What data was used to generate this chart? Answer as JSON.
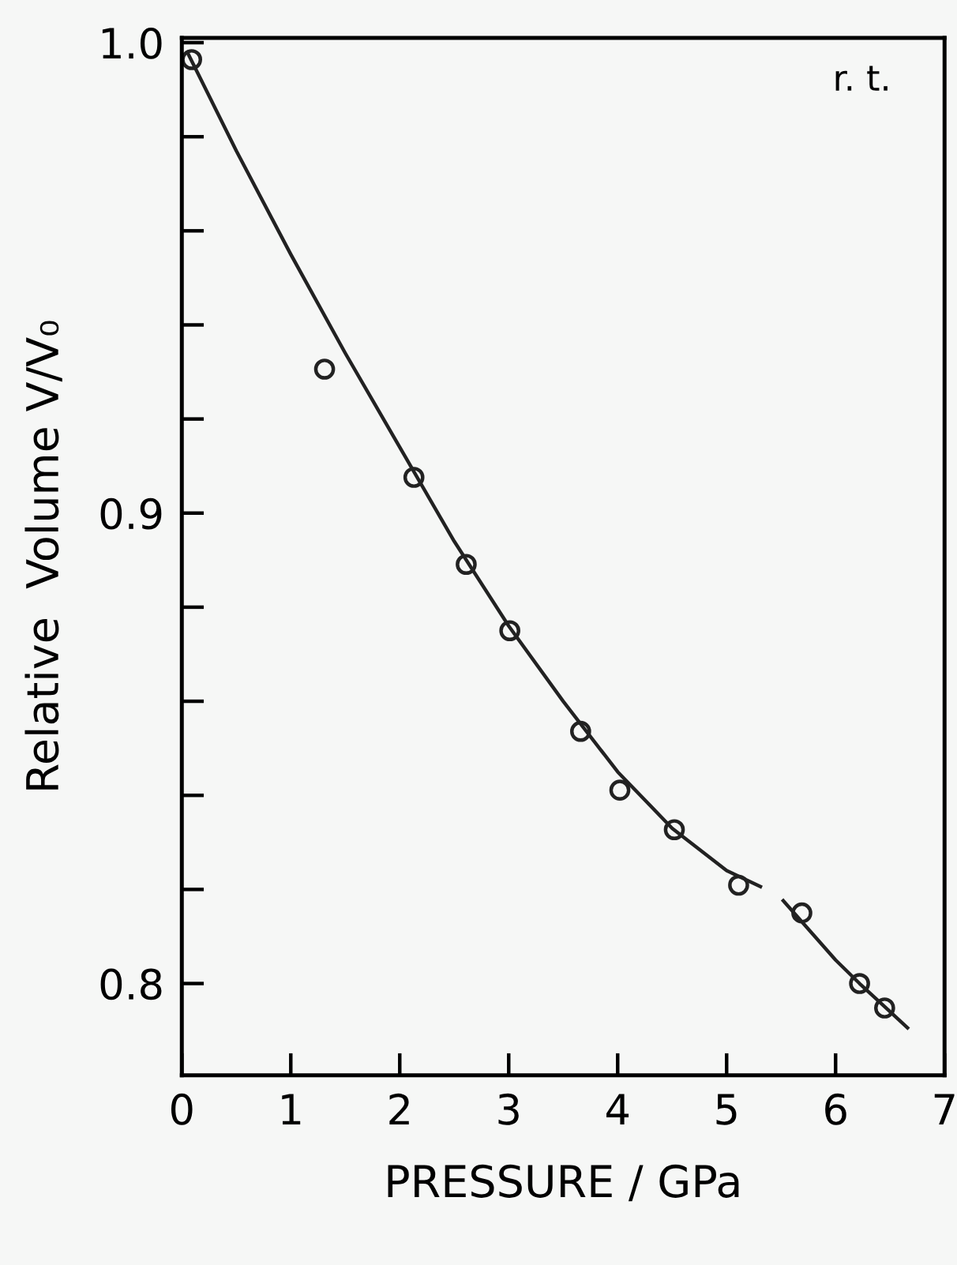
{
  "chart_data": {
    "type": "scatter",
    "xlabel": "PRESSURE / GPa",
    "ylabel": "Relative  Volume V/V₀",
    "xlim": [
      0,
      7
    ],
    "xticks": [
      0,
      1,
      2,
      3,
      4,
      5,
      6,
      7
    ],
    "ylim": [
      0.7805,
      1.001
    ],
    "yticks": [
      {
        "value": 0.8,
        "label": "0.8"
      },
      {
        "value": 0.82,
        "label": null
      },
      {
        "value": 0.84,
        "label": null
      },
      {
        "value": 0.86,
        "label": null
      },
      {
        "value": 0.88,
        "label": null
      },
      {
        "value": 0.9,
        "label": "0.9"
      },
      {
        "value": 0.92,
        "label": null
      },
      {
        "value": 0.94,
        "label": null
      },
      {
        "value": 0.96,
        "label": null
      },
      {
        "value": 0.98,
        "label": null
      },
      {
        "value": 1.0,
        "label": "1.0"
      }
    ],
    "grid": false,
    "legend": false,
    "annotations": [
      "r. t."
    ],
    "series": [
      {
        "color": "#222222",
        "marker": "circle",
        "x": [
          0.09,
          1.31,
          2.13,
          2.61,
          3.01,
          3.66,
          4.02,
          4.52,
          5.11,
          5.69,
          6.22,
          6.45
        ],
        "values": [
          0.9964,
          0.9306,
          0.9076,
          0.8891,
          0.875,
          0.8536,
          0.8411,
          0.8327,
          0.8209,
          0.815,
          0.8,
          0.7948
        ]
      },
      {
        "type": "line",
        "color": "#222222",
        "marker": "none",
        "line_style": "solid",
        "x": [
          0.05,
          0.5,
          1.0,
          1.5,
          2.0,
          2.5,
          3.0,
          3.5,
          4.0,
          4.5,
          5.0,
          5.31,
          5.41,
          5.52,
          6.0,
          6.22,
          6.66
        ],
        "values": [
          0.998,
          0.977,
          0.955,
          0.934,
          0.914,
          0.894,
          0.876,
          0.86,
          0.845,
          0.833,
          0.824,
          0.8206,
          null,
          0.8176,
          0.805,
          0.8,
          0.7906
        ]
      }
    ]
  }
}
